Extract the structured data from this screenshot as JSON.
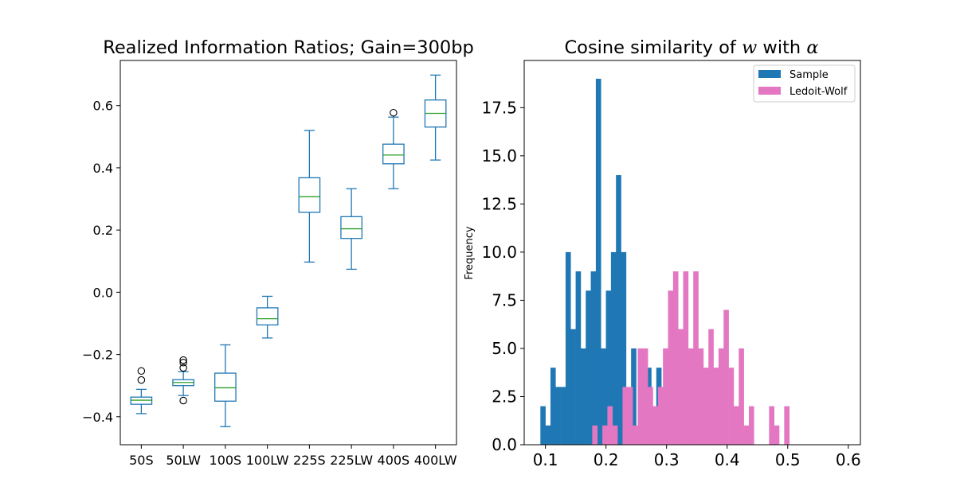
{
  "chart_data": [
    {
      "type": "box",
      "title": "Realized Information Ratios; Gain=300bp",
      "xlabel": "",
      "ylabel": "",
      "ylim": [
        -0.49,
        0.745
      ],
      "yticks": [
        -0.4,
        -0.2,
        0.0,
        0.2,
        0.4,
        0.6
      ],
      "ytick_labels": [
        "−0.4",
        "−0.2",
        "0.0",
        "0.2",
        "0.4",
        "0.6"
      ],
      "categories": [
        "50S",
        "50LW",
        "100S",
        "100LW",
        "225S",
        "225LW",
        "400S",
        "400LW"
      ],
      "boxes": [
        {
          "label": "50S",
          "whisker_low": -0.39,
          "q1": -0.36,
          "median": -0.347,
          "q3": -0.337,
          "whisker_high": -0.312,
          "outliers": [
            -0.282,
            -0.253
          ]
        },
        {
          "label": "50LW",
          "whisker_low": -0.332,
          "q1": -0.3,
          "median": -0.29,
          "q3": -0.281,
          "whisker_high": -0.255,
          "outliers": [
            -0.348,
            -0.243,
            -0.226,
            -0.218
          ]
        },
        {
          "label": "100S",
          "whisker_low": -0.432,
          "q1": -0.35,
          "median": -0.307,
          "q3": -0.26,
          "whisker_high": -0.169,
          "outliers": []
        },
        {
          "label": "100LW",
          "whisker_low": -0.147,
          "q1": -0.105,
          "median": -0.085,
          "q3": -0.05,
          "whisker_high": -0.013,
          "outliers": []
        },
        {
          "label": "225S",
          "whisker_low": 0.097,
          "q1": 0.257,
          "median": 0.307,
          "q3": 0.368,
          "whisker_high": 0.52,
          "outliers": []
        },
        {
          "label": "225LW",
          "whisker_low": 0.074,
          "q1": 0.173,
          "median": 0.204,
          "q3": 0.243,
          "whisker_high": 0.333,
          "outliers": []
        },
        {
          "label": "400S",
          "whisker_low": 0.333,
          "q1": 0.413,
          "median": 0.441,
          "q3": 0.476,
          "whisker_high": 0.563,
          "outliers": [
            0.577
          ]
        },
        {
          "label": "400LW",
          "whisker_low": 0.425,
          "q1": 0.531,
          "median": 0.575,
          "q3": 0.618,
          "whisker_high": 0.698,
          "outliers": []
        }
      ],
      "colors": {
        "box": "#1f77b4",
        "median": "#2ca02c"
      }
    },
    {
      "type": "histogram",
      "title_prefix": "Cosine similarity of ",
      "title_w": "w",
      "title_mid": " with ",
      "title_alpha": "α",
      "xlabel": "",
      "ylabel": "Frequency",
      "xlim": [
        0.065,
        0.62
      ],
      "ylim": [
        0,
        19.95
      ],
      "xticks": [
        0.1,
        0.2,
        0.3,
        0.4,
        0.5,
        0.6
      ],
      "xtick_labels": [
        "0.1",
        "0.2",
        "0.3",
        "0.4",
        "0.5",
        "0.6"
      ],
      "yticks": [
        0,
        2.5,
        5,
        7.5,
        10,
        12.5,
        15,
        17.5
      ],
      "ytick_labels": [
        "0.0",
        "2.5",
        "5.0",
        "7.5",
        "10.0",
        "12.5",
        "15.0",
        "17.5"
      ],
      "legend": {
        "position": "upper right",
        "entries": [
          "Sample",
          "Ledoit-Wolf"
        ]
      },
      "series": [
        {
          "name": "Sample",
          "color": "#1f77b4",
          "bin_start": 0.0917,
          "bin_width": 0.00832,
          "counts": [
            2,
            1,
            4,
            3,
            3,
            10,
            6,
            9,
            5,
            8,
            9,
            19,
            5,
            8,
            10,
            14,
            10,
            1,
            5,
            0,
            3,
            4,
            1,
            4
          ]
        },
        {
          "name": "Ledoit-Wolf",
          "color": "#e377c2",
          "bin_start": 0.1773,
          "bin_width": 0.00834,
          "counts": [
            1,
            0,
            1,
            2,
            1,
            0,
            3,
            3,
            1,
            5,
            5,
            3,
            2,
            3,
            5,
            8,
            9,
            6,
            9,
            5,
            9,
            5,
            4,
            6,
            4,
            5,
            7,
            4,
            2,
            5,
            1,
            2,
            0,
            0,
            0,
            2,
            1,
            0,
            2
          ]
        }
      ]
    }
  ]
}
